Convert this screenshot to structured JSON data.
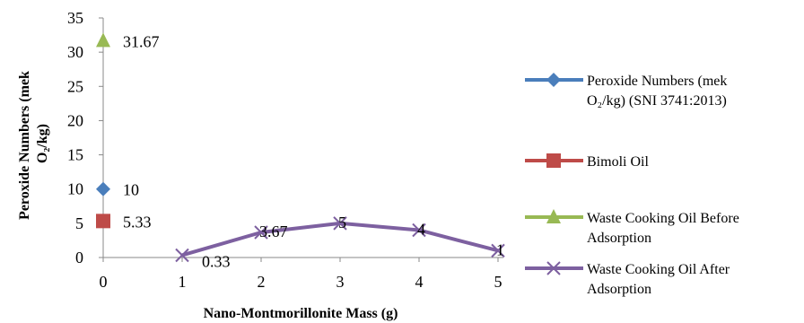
{
  "chart_data": {
    "type": "line",
    "xlabel": "Nano-Montmorillonite Mass (g)",
    "ylabel": "Peroxide Numbers (mek O₂/kg)",
    "ylim": [
      0,
      35
    ],
    "xlim": [
      0,
      5
    ],
    "y_ticks": [
      "0",
      "5",
      "10",
      "15",
      "20",
      "25",
      "30",
      "35"
    ],
    "x_ticks": [
      "0",
      "1",
      "2",
      "3",
      "4",
      "5"
    ],
    "legend_position": "right",
    "grid": false,
    "series": [
      {
        "name_lines": [
          "Peroxide Numbers (mek",
          "O₂/kg) (SNI 3741:2013)"
        ],
        "color": "#4a7ebb",
        "marker": "diamond",
        "points": [
          {
            "x": 0,
            "y": 10,
            "label": "10"
          }
        ]
      },
      {
        "name_lines": [
          "Bimoli Oil"
        ],
        "color": "#be4b48",
        "marker": "square",
        "points": [
          {
            "x": 0,
            "y": 5.33,
            "label": "5.33"
          }
        ]
      },
      {
        "name_lines": [
          "Waste Cooking Oil Before",
          "Adsorption"
        ],
        "color": "#98b954",
        "marker": "triangle",
        "points": [
          {
            "x": 0,
            "y": 31.67,
            "label": "31.67"
          }
        ]
      },
      {
        "name_lines": [
          "Waste Cooking Oil After",
          "Adsorption"
        ],
        "color": "#7d60a0",
        "marker": "x",
        "points": [
          {
            "x": 1,
            "y": 0.33,
            "label": "0.33"
          },
          {
            "x": 2,
            "y": 3.67,
            "label": "3.67"
          },
          {
            "x": 3,
            "y": 5,
            "label": "5"
          },
          {
            "x": 4,
            "y": 4,
            "label": "4"
          },
          {
            "x": 5,
            "y": 1,
            "label": "1"
          }
        ]
      }
    ]
  }
}
